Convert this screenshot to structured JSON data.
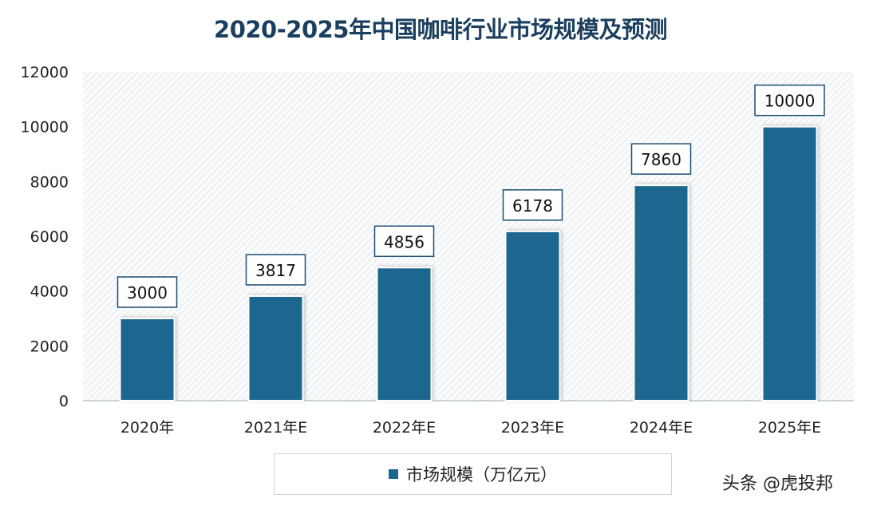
{
  "chart_data": {
    "type": "bar",
    "title": "2020-2025年中国咖啡行业市场规模及预测",
    "categories": [
      "2020年",
      "2021年E",
      "2022年E",
      "2023年E",
      "2024年E",
      "2025年E"
    ],
    "series": [
      {
        "name": "市场规模（万亿元）",
        "values": [
          3000,
          3817,
          4856,
          6178,
          7860,
          10000
        ],
        "color": "#1a6690"
      }
    ],
    "yticks": [
      0,
      2000,
      4000,
      6000,
      8000,
      10000,
      12000
    ],
    "ylim": [
      0,
      12000
    ],
    "grid": false,
    "legend": "bottom",
    "data_labels": true
  },
  "watermark": "头条 @虎投邦"
}
